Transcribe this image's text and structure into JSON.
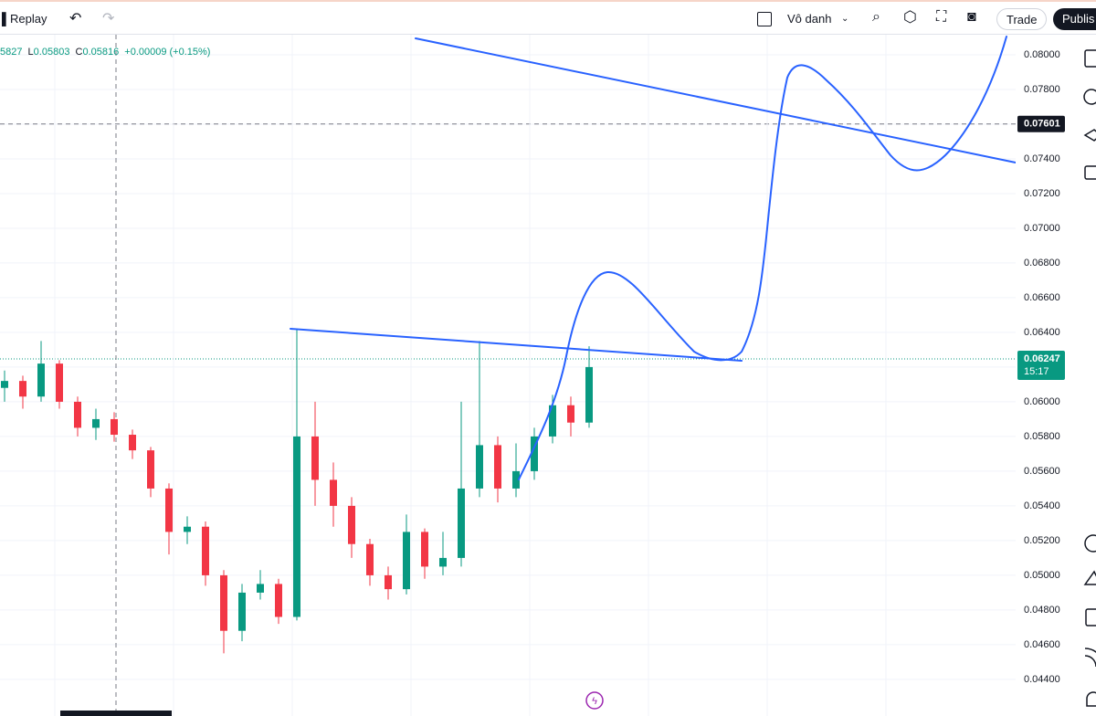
{
  "toolbar": {
    "replay": "Replay",
    "layout_name": "Vô danh",
    "trade": "Trade",
    "publish": "Publis"
  },
  "legend": {
    "open": "5827",
    "low_label": "L",
    "low": "0.05803",
    "close_label": "C",
    "close": "0.05816",
    "change": "+0.00009 (+0.15%)"
  },
  "chart_data": {
    "type": "candlestick",
    "ylim": [
      0.04189,
      0.08105
    ],
    "yticks": [
      {
        "value": 0.08,
        "label": "0.08000"
      },
      {
        "value": 0.078,
        "label": "0.07800"
      },
      {
        "value": 0.076,
        "label": "0.07600"
      },
      {
        "value": 0.074,
        "label": "0.07400"
      },
      {
        "value": 0.072,
        "label": "0.07200"
      },
      {
        "value": 0.07,
        "label": "0.07000"
      },
      {
        "value": 0.068,
        "label": "0.06800"
      },
      {
        "value": 0.066,
        "label": "0.06600"
      },
      {
        "value": 0.064,
        "label": "0.06400"
      },
      {
        "value": 0.062,
        "label": "0.06200"
      },
      {
        "value": 0.06,
        "label": "0.06000"
      },
      {
        "value": 0.058,
        "label": "0.05800"
      },
      {
        "value": 0.056,
        "label": "0.05600"
      },
      {
        "value": 0.054,
        "label": "0.05400"
      },
      {
        "value": 0.052,
        "label": "0.05200"
      },
      {
        "value": 0.05,
        "label": "0.05000"
      },
      {
        "value": 0.048,
        "label": "0.04800"
      },
      {
        "value": 0.046,
        "label": "0.04600"
      },
      {
        "value": 0.044,
        "label": "0.04400"
      }
    ],
    "up_color": "#089981",
    "down_color": "#f23645",
    "crosshair_price": {
      "value": 0.07601,
      "label": "0.07601"
    },
    "last_price": {
      "value": 0.06247,
      "label": "0.06247",
      "countdown": "15:17"
    },
    "candles": [
      [
        0.0608,
        0.0618,
        0.06,
        0.0612
      ],
      [
        0.0612,
        0.0615,
        0.0596,
        0.0603
      ],
      [
        0.0603,
        0.0635,
        0.06,
        0.0622
      ],
      [
        0.0622,
        0.0624,
        0.0596,
        0.06
      ],
      [
        0.06,
        0.0603,
        0.058,
        0.0585
      ],
      [
        0.0585,
        0.0596,
        0.0578,
        0.059
      ],
      [
        0.059,
        0.0594,
        0.0577,
        0.0581
      ],
      [
        0.0581,
        0.0584,
        0.0567,
        0.0572
      ],
      [
        0.0572,
        0.0574,
        0.0545,
        0.055
      ],
      [
        0.055,
        0.0553,
        0.0512,
        0.0525
      ],
      [
        0.0525,
        0.0534,
        0.0518,
        0.0528
      ],
      [
        0.0528,
        0.0531,
        0.0494,
        0.05
      ],
      [
        0.05,
        0.0503,
        0.0455,
        0.0468
      ],
      [
        0.0468,
        0.0495,
        0.0462,
        0.049
      ],
      [
        0.049,
        0.0503,
        0.0486,
        0.0495
      ],
      [
        0.0495,
        0.0498,
        0.0472,
        0.0476
      ],
      [
        0.0476,
        0.0642,
        0.0474,
        0.058
      ],
      [
        0.058,
        0.06,
        0.054,
        0.0555
      ],
      [
        0.0555,
        0.0565,
        0.0528,
        0.054
      ],
      [
        0.054,
        0.0545,
        0.051,
        0.0518
      ],
      [
        0.0518,
        0.0521,
        0.0494,
        0.05
      ],
      [
        0.05,
        0.0505,
        0.0486,
        0.0492
      ],
      [
        0.0492,
        0.0535,
        0.0489,
        0.0525
      ],
      [
        0.0525,
        0.0527,
        0.0498,
        0.0505
      ],
      [
        0.0505,
        0.0525,
        0.05,
        0.051
      ],
      [
        0.051,
        0.06,
        0.0505,
        0.055
      ],
      [
        0.055,
        0.0635,
        0.0545,
        0.0575
      ],
      [
        0.0575,
        0.058,
        0.0542,
        0.055
      ],
      [
        0.055,
        0.0576,
        0.0545,
        0.056
      ],
      [
        0.056,
        0.0585,
        0.0555,
        0.058
      ],
      [
        0.058,
        0.0604,
        0.0576,
        0.0598
      ],
      [
        0.0598,
        0.0603,
        0.058,
        0.0588
      ],
      [
        0.0588,
        0.0632,
        0.0585,
        0.062
      ]
    ]
  }
}
